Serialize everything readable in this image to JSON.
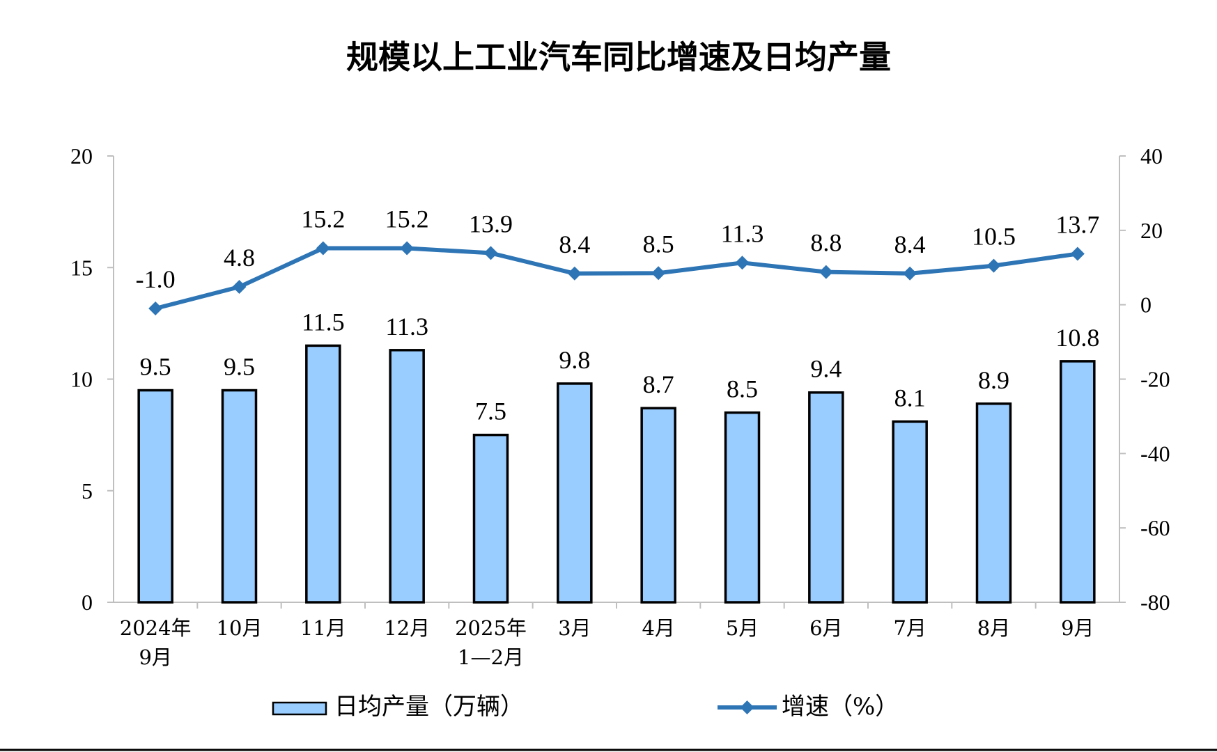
{
  "colors": {
    "bar_fill": "#99CCFF",
    "bar_stroke": "#000000",
    "line": "#2E75B6",
    "axis": "#BFBFBF",
    "bottom_rule": "#000000"
  },
  "chart_data": {
    "type": "bar",
    "title": "规模以上工业汽车同比增速及日均产量",
    "categories": [
      [
        "2024年",
        "9月"
      ],
      [
        "10月"
      ],
      [
        "11月"
      ],
      [
        "12月"
      ],
      [
        "2025年",
        "1—2月"
      ],
      [
        "3月"
      ],
      [
        "4月"
      ],
      [
        "5月"
      ],
      [
        "6月"
      ],
      [
        "7月"
      ],
      [
        "8月"
      ],
      [
        "9月"
      ]
    ],
    "series": [
      {
        "name": "日均产量（万辆）",
        "type": "bar",
        "axis": "left",
        "values": [
          9.5,
          9.5,
          11.5,
          11.3,
          7.5,
          9.8,
          8.7,
          8.5,
          9.4,
          8.1,
          8.9,
          10.8
        ],
        "labels": [
          "9.5",
          "9.5",
          "11.5",
          "11.3",
          "7.5",
          "9.8",
          "8.7",
          "8.5",
          "9.4",
          "8.1",
          "8.9",
          "10.8"
        ]
      },
      {
        "name": "增速（%）",
        "type": "line",
        "axis": "right",
        "marker": "diamond",
        "values": [
          -1.0,
          4.8,
          15.2,
          15.2,
          13.9,
          8.4,
          8.5,
          11.3,
          8.8,
          8.4,
          10.5,
          13.7
        ],
        "labels": [
          "-1.0",
          "4.8",
          "15.2",
          "15.2",
          "13.9",
          "8.4",
          "8.5",
          "11.3",
          "8.8",
          "8.4",
          "10.5",
          "13.7"
        ]
      }
    ],
    "left_axis": {
      "ylim": [
        0,
        20
      ],
      "ticks": [
        0,
        5,
        10,
        15,
        20
      ],
      "tick_labels": [
        "0",
        "5",
        "10",
        "15",
        "20"
      ]
    },
    "right_axis": {
      "ylim": [
        -80,
        40
      ],
      "ticks": [
        -80,
        -60,
        -40,
        -20,
        0,
        20,
        40
      ],
      "tick_labels": [
        "-80",
        "-60",
        "-40",
        "-20",
        "0",
        "20",
        "40"
      ]
    },
    "grid": false,
    "legend_position": "bottom"
  }
}
